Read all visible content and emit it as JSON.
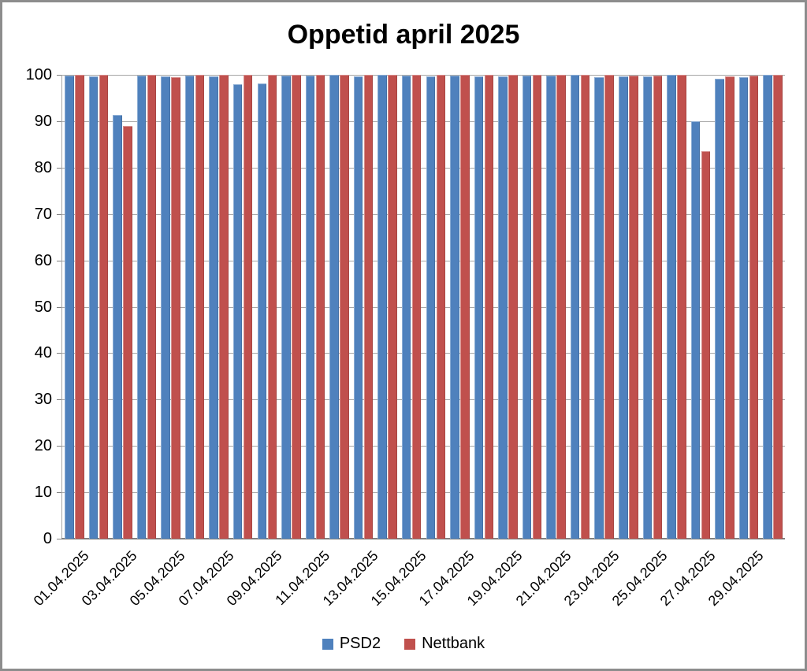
{
  "chart_data": {
    "type": "bar",
    "title": "Oppetid april 2025",
    "xlabel": "",
    "ylabel": "",
    "ylim": [
      0,
      100
    ],
    "ytick_step": 10,
    "yticks": [
      0,
      10,
      20,
      30,
      40,
      50,
      60,
      70,
      80,
      90,
      100
    ],
    "grid": "horizontal",
    "legend_position": "bottom",
    "categories": [
      "01.04.2025",
      "02.04.2025",
      "03.04.2025",
      "04.04.2025",
      "05.04.2025",
      "06.04.2025",
      "07.04.2025",
      "08.04.2025",
      "09.04.2025",
      "10.04.2025",
      "11.04.2025",
      "12.04.2025",
      "13.04.2025",
      "14.04.2025",
      "15.04.2025",
      "16.04.2025",
      "17.04.2025",
      "18.04.2025",
      "19.04.2025",
      "20.04.2025",
      "21.04.2025",
      "22.04.2025",
      "23.04.2025",
      "24.04.2025",
      "25.04.2025",
      "26.04.2025",
      "27.04.2025",
      "28.04.2025",
      "29.04.2025",
      "30.04.2025"
    ],
    "x_tick_labels": [
      "01.04.2025",
      "03.04.2025",
      "05.04.2025",
      "07.04.2025",
      "09.04.2025",
      "11.04.2025",
      "13.04.2025",
      "15.04.2025",
      "17.04.2025",
      "19.04.2025",
      "21.04.2025",
      "23.04.2025",
      "25.04.2025",
      "27.04.2025",
      "29.04.2025"
    ],
    "series": [
      {
        "name": "PSD2",
        "color": "#4F81BD",
        "values": [
          99.9,
          99.6,
          91.3,
          99.9,
          99.7,
          99.8,
          99.7,
          98.0,
          98.1,
          99.8,
          99.8,
          100,
          99.7,
          100,
          99.9,
          99.6,
          99.8,
          99.6,
          99.6,
          99.8,
          99.9,
          100,
          99.5,
          99.6,
          99.7,
          100,
          90.0,
          99.2,
          99.5,
          100
        ]
      },
      {
        "name": "Nettbank",
        "color": "#C0504D",
        "values": [
          100,
          100,
          89.0,
          100,
          99.5,
          100,
          100,
          100,
          100,
          100,
          100,
          100,
          100,
          100,
          100,
          100,
          100,
          100,
          100,
          100,
          100,
          100,
          100,
          99.9,
          99.9,
          100,
          83.5,
          99.7,
          99.9,
          100
        ]
      }
    ],
    "colors": {
      "gridline": "#a6a6a6",
      "axis": "#808080",
      "title_text": "#000000",
      "background": "#ffffff"
    }
  }
}
